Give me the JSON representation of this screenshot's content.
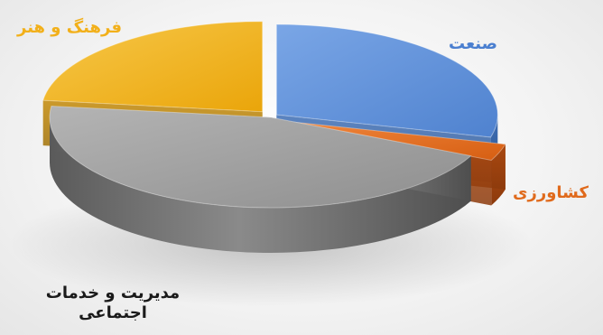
{
  "chart_data": {
    "type": "pie",
    "categories": [
      "صنعت",
      "کشاورزی",
      "مدیریت و خدمات اجتماعی",
      "فرهنگ و هنر"
    ],
    "values": [
      29,
      3,
      45,
      23
    ],
    "colors": [
      "#5b8fd9",
      "#e46a1c",
      "#9e9e9e",
      "#f3b411"
    ],
    "label_colors": [
      "#4a7fd0",
      "#e06a1c",
      "#1a1a1a",
      "#f2b01a"
    ],
    "style": "3d-exploded",
    "legend": "none"
  }
}
